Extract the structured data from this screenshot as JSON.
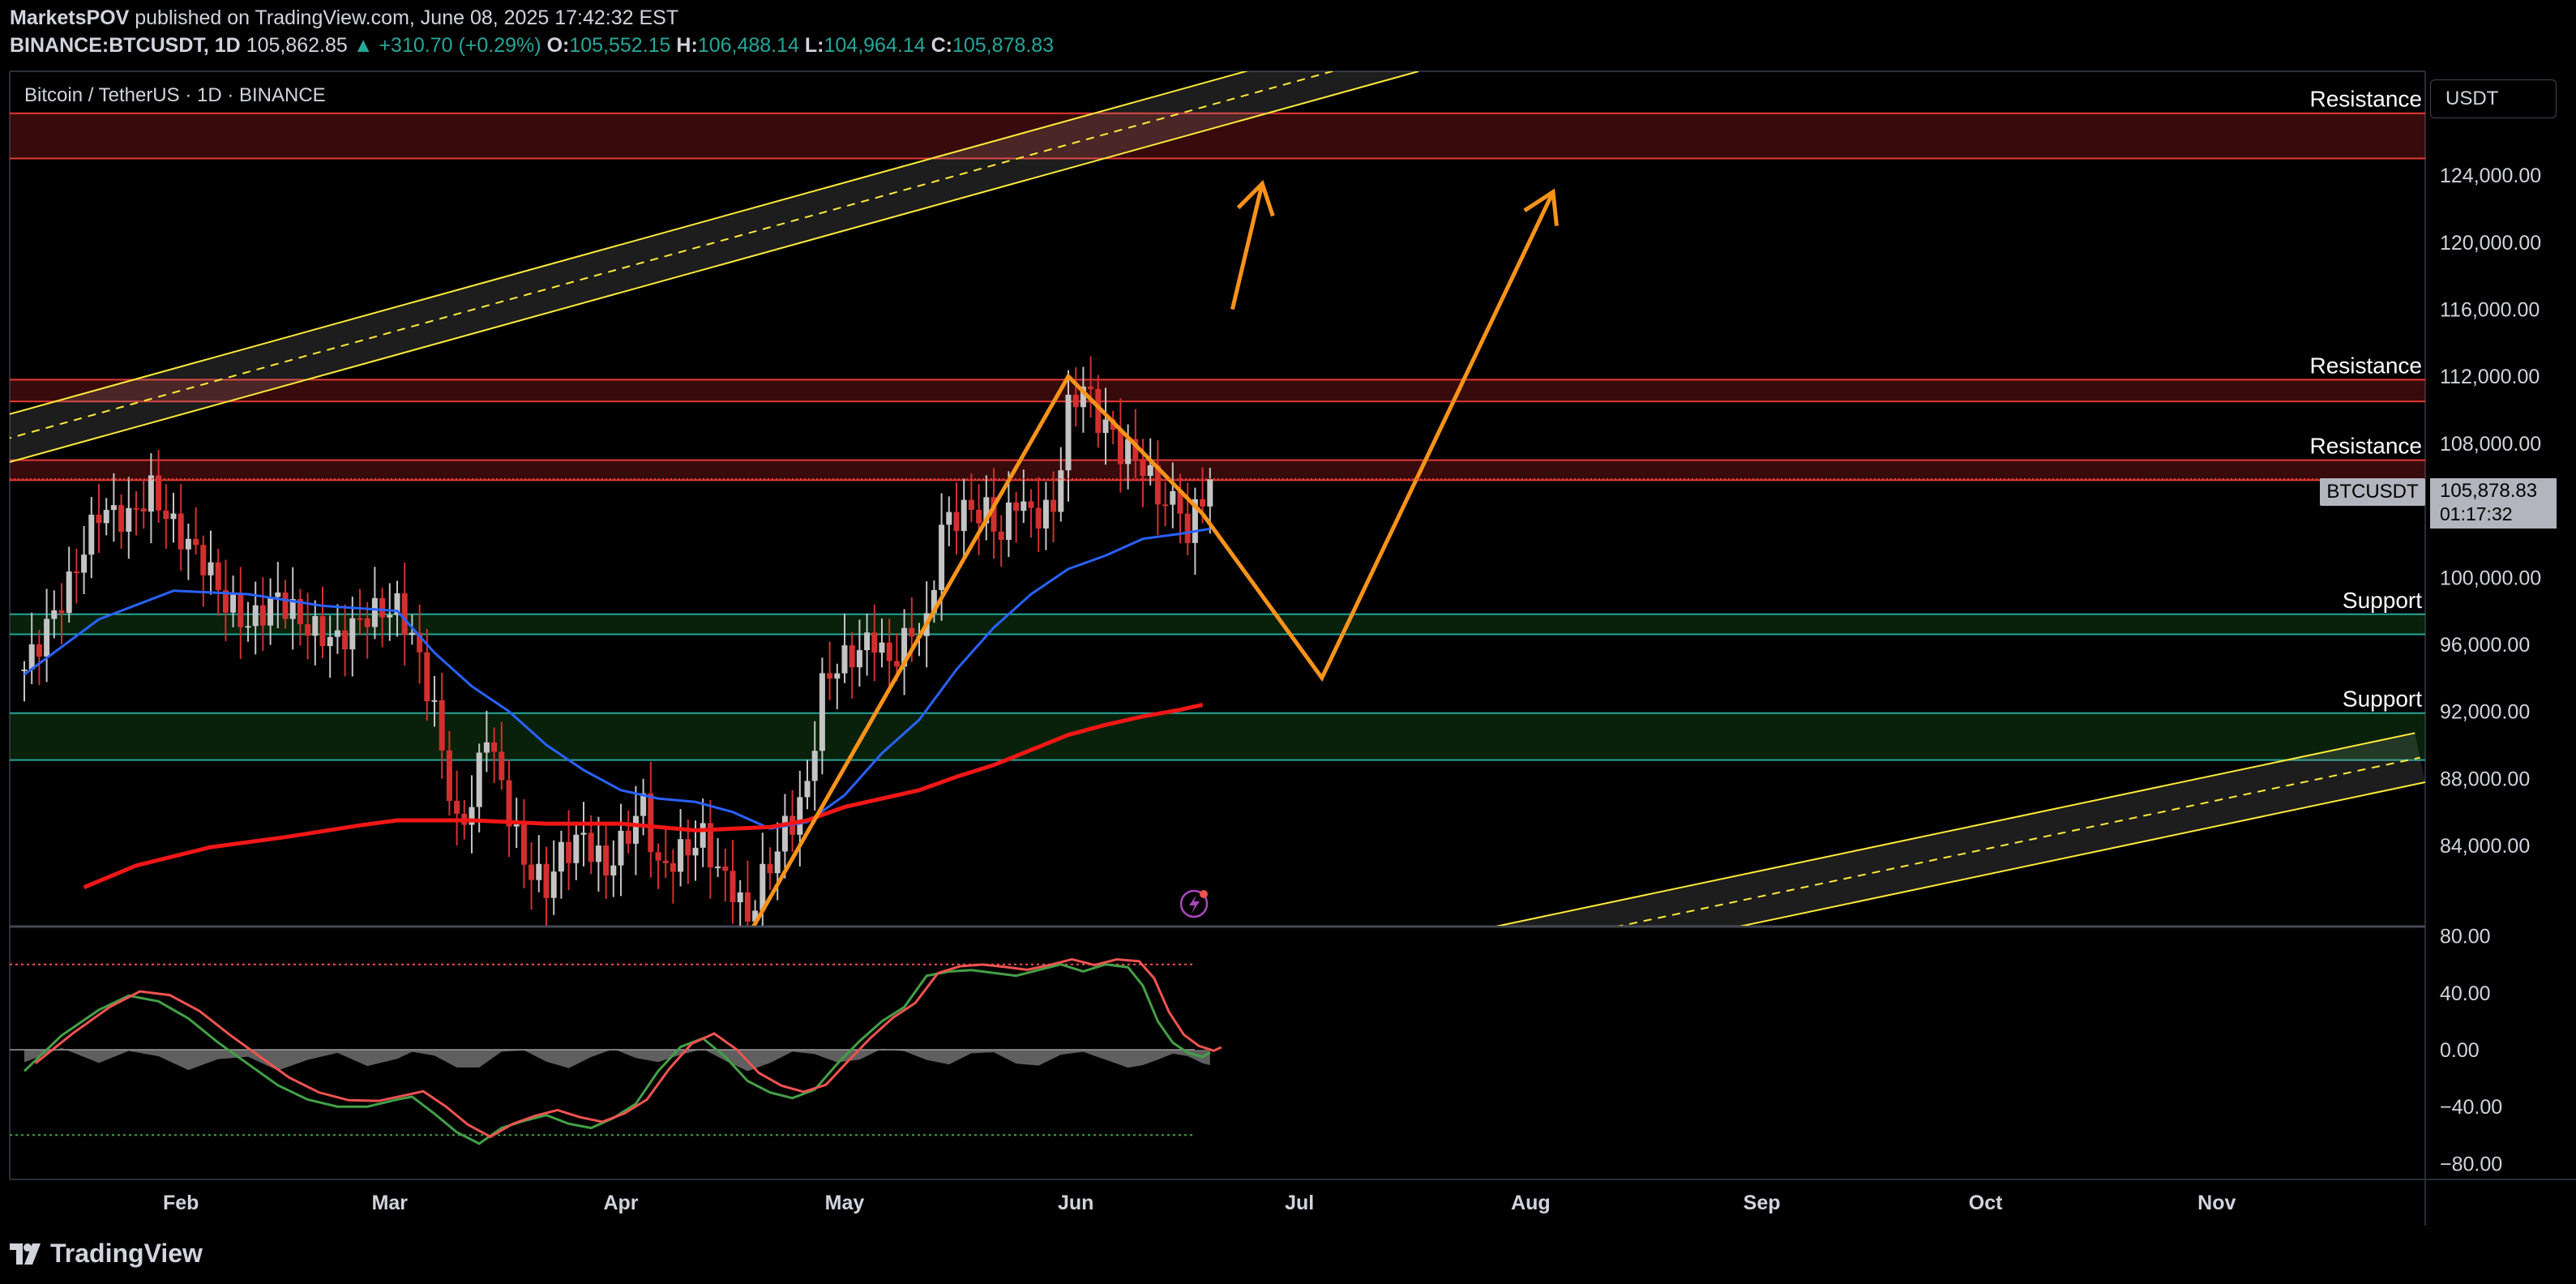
{
  "header": {
    "author": "MarketsPOV",
    "published_text": "published on TradingView.com, June 08, 2025 17:42:32 EST",
    "symbol": "BINANCE:BTCUSDT, 1D",
    "price": "105,862.85",
    "change": "▲ +310.70 (+0.29%)",
    "o_label": "O:",
    "o_value": "105,552.15",
    "h_label": "H:",
    "h_value": "106,488.14",
    "l_label": "L:",
    "l_value": "104,964.14",
    "c_label": "C:",
    "c_value": "105,878.83"
  },
  "chart_title": "Bitcoin / TetherUS · 1D · BINANCE",
  "currency_label": "USDT",
  "symbol_tag": "BTCUSDT",
  "last_price": "105,878.83",
  "countdown": "01:17:32",
  "footer": {
    "brand": "TradingView"
  },
  "colors": {
    "background": "#000000",
    "resistance_zone": "#c62828",
    "support_zone": "#1b5e20",
    "channel": "#ffeb3b",
    "projection": "#f7931a",
    "ma_fast": "#2962ff",
    "ma_slow": "#f21616",
    "up_candle": "#c4c4c4",
    "down_candle": "#d32f2f"
  },
  "chart_data": [
    {
      "type": "candlestick",
      "title": "Bitcoin / TetherUS · 1D · BINANCE",
      "ylim": [
        80000,
        130000
      ],
      "y_ticks": [
        "124,000.00",
        "120,000.00",
        "116,000.00",
        "112,000.00",
        "108,000.00",
        "100,000.00",
        "96,000.00",
        "92,000.00",
        "88,000.00",
        "84,000.00"
      ],
      "y_tick_values": [
        124000,
        120000,
        116000,
        112000,
        108000,
        100000,
        96000,
        92000,
        88000,
        84000
      ],
      "x_labels": [
        "Feb",
        "Mar",
        "Apr",
        "May",
        "Jun",
        "Jul",
        "Aug",
        "Sep",
        "Oct",
        "Nov"
      ],
      "x_label_dates": [
        "2025-02-01",
        "2025-03-01",
        "2025-04-01",
        "2025-05-01",
        "2025-06-01",
        "2025-07-01",
        "2025-08-01",
        "2025-09-01",
        "2025-10-01",
        "2025-11-01"
      ],
      "date_start": "2025-01-11",
      "date_end": "2025-11-07",
      "close_series": [
        [
          0,
          94500
        ],
        [
          6,
          99500
        ],
        [
          10,
          104000
        ],
        [
          14,
          103500
        ],
        [
          17,
          105200
        ],
        [
          20,
          103000
        ],
        [
          24,
          101000
        ],
        [
          27,
          98500
        ],
        [
          30,
          97200
        ],
        [
          34,
          98800
        ],
        [
          38,
          97000
        ],
        [
          42,
          96200
        ],
        [
          46,
          97800
        ],
        [
          50,
          98200
        ],
        [
          52,
          96500
        ],
        [
          55,
          92000
        ],
        [
          58,
          85000
        ],
        [
          60,
          86500
        ],
        [
          62,
          91000
        ],
        [
          64,
          87500
        ],
        [
          67,
          83000
        ],
        [
          70,
          81500
        ],
        [
          72,
          83500
        ],
        [
          75,
          84500
        ],
        [
          78,
          82500
        ],
        [
          80,
          84000
        ],
        [
          83,
          86500
        ],
        [
          85,
          82500
        ],
        [
          88,
          83500
        ],
        [
          91,
          84500
        ],
        [
          93,
          82500
        ],
        [
          95,
          81500
        ],
        [
          97,
          79500
        ],
        [
          99,
          82000
        ],
        [
          101,
          83800
        ],
        [
          102,
          85000
        ],
        [
          103,
          85500
        ],
        [
          105,
          87500
        ],
        [
          107,
          93500
        ],
        [
          109,
          94800
        ],
        [
          111,
          95300
        ],
        [
          114,
          96400
        ],
        [
          116,
          94800
        ],
        [
          119,
          96800
        ],
        [
          121,
          97000
        ],
        [
          123,
          103000
        ],
        [
          126,
          104000
        ],
        [
          129,
          103900
        ],
        [
          131,
          102500
        ],
        [
          133,
          104800
        ],
        [
          135,
          103700
        ],
        [
          138,
          104000
        ],
        [
          140,
          110000
        ],
        [
          142,
          111500
        ],
        [
          144,
          109500
        ],
        [
          146,
          108500
        ],
        [
          147,
          107600
        ],
        [
          149,
          107300
        ],
        [
          151,
          105800
        ],
        [
          153,
          104300
        ],
        [
          155,
          104700
        ],
        [
          156,
          101500
        ],
        [
          157,
          104500
        ],
        [
          158,
          105000
        ],
        [
          159,
          105862
        ]
      ],
      "series": [
        {
          "name": "MA fast (blue)",
          "points": [
            [
              0,
              94200
            ],
            [
              10,
              97500
            ],
            [
              20,
              99200
            ],
            [
              30,
              99000
            ],
            [
              40,
              98300
            ],
            [
              50,
              98000
            ],
            [
              55,
              95500
            ],
            [
              60,
              93500
            ],
            [
              65,
              92000
            ],
            [
              70,
              90000
            ],
            [
              75,
              88500
            ],
            [
              80,
              87300
            ],
            [
              85,
              86800
            ],
            [
              90,
              86600
            ],
            [
              95,
              86000
            ],
            [
              100,
              85000
            ],
            [
              105,
              85400
            ],
            [
              110,
              87000
            ],
            [
              115,
              89500
            ],
            [
              120,
              91500
            ],
            [
              125,
              94500
            ],
            [
              130,
              97000
            ],
            [
              135,
              99000
            ],
            [
              140,
              100500
            ],
            [
              145,
              101300
            ],
            [
              150,
              102300
            ],
            [
              155,
              102600
            ],
            [
              159,
              102900
            ]
          ]
        },
        {
          "name": "MA slow (red)",
          "points": [
            [
              8,
              81500
            ],
            [
              15,
              82800
            ],
            [
              25,
              83900
            ],
            [
              35,
              84500
            ],
            [
              45,
              85200
            ],
            [
              50,
              85500
            ],
            [
              60,
              85500
            ],
            [
              70,
              85300
            ],
            [
              80,
              85300
            ],
            [
              90,
              84900
            ],
            [
              100,
              85100
            ],
            [
              105,
              85500
            ],
            [
              110,
              86300
            ],
            [
              120,
              87300
            ],
            [
              125,
              88100
            ],
            [
              130,
              88800
            ],
            [
              135,
              89700
            ],
            [
              140,
              90600
            ],
            [
              145,
              91200
            ],
            [
              150,
              91700
            ],
            [
              155,
              92100
            ],
            [
              158,
              92400
            ]
          ]
        }
      ],
      "zones": [
        {
          "label": "Resistance",
          "from": 125000,
          "to": 127700
        },
        {
          "label": "Resistance",
          "from": 110500,
          "to": 111800
        },
        {
          "label": "Resistance",
          "from": 105800,
          "to": 107000
        },
        {
          "label": "Support",
          "from": 96600,
          "to": 97800
        },
        {
          "label": "Support",
          "from": 89100,
          "to": 91900
        }
      ],
      "projection": [
        [
          158,
          103800
        ],
        [
          174,
          94000
        ],
        [
          205,
          123000
        ]
      ],
      "projection_arrow_short": [
        [
          162,
          116000
        ],
        [
          166,
          123500
        ]
      ]
    },
    {
      "type": "line",
      "title": "Oscillator",
      "ylim": [
        -90,
        95
      ],
      "y_ticks": [
        "80.00",
        "40.00",
        "0.00",
        "−40.00",
        "−80.00"
      ],
      "y_tick_values": [
        80,
        40,
        0,
        -40,
        -80
      ],
      "upper_band": 60,
      "lower_band": -60
    }
  ]
}
